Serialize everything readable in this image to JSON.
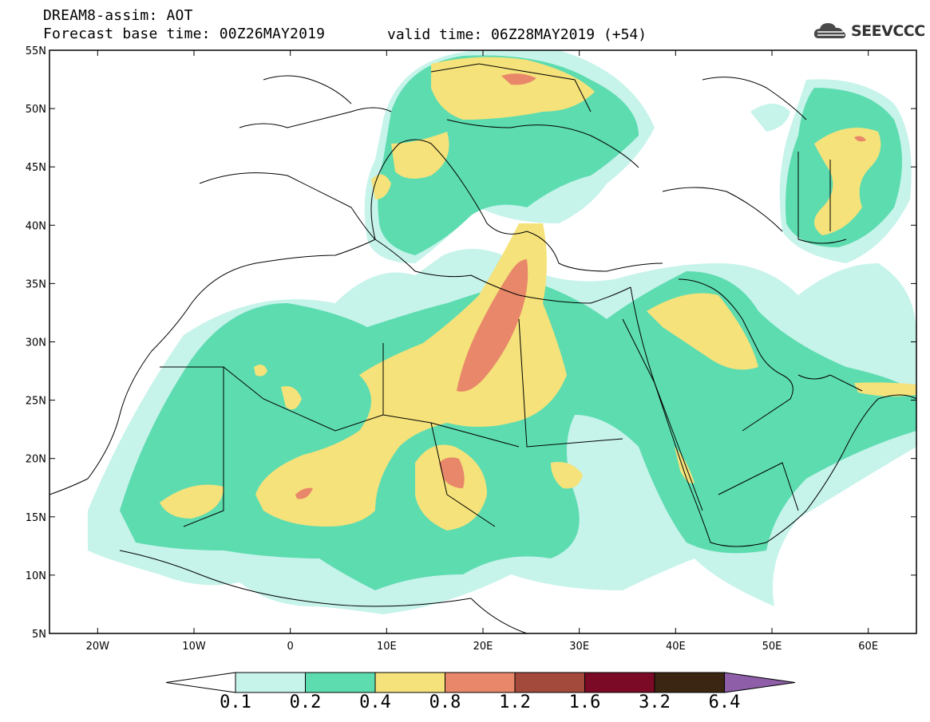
{
  "header": {
    "title": "DREAM8-assim: AOT",
    "base_time": "Forecast base time: 00Z26MAY2019",
    "valid_time": "valid time: 06Z28MAY2019 (+54)",
    "logo_text": "SEEVCCC"
  },
  "map": {
    "lon_range": [
      -25,
      65
    ],
    "lat_range": [
      5,
      55
    ],
    "lat_labels": [
      "55N",
      "50N",
      "45N",
      "40N",
      "35N",
      "30N",
      "25N",
      "20N",
      "15N",
      "10N",
      "5N"
    ],
    "lon_labels": [
      "20W",
      "10W",
      "0",
      "10E",
      "20E",
      "30E",
      "40E",
      "50E",
      "60E"
    ]
  },
  "colorbar": {
    "labels": [
      "0.1",
      "0.2",
      "0.4",
      "0.8",
      "1.2",
      "1.6",
      "3.2",
      "6.4"
    ],
    "colors": [
      "#c6f3ea",
      "#5ddcb0",
      "#f5e27a",
      "#e8876a",
      "#a44a3c",
      "#7a0a25",
      "#3a2612",
      "#8e5fa8"
    ]
  }
}
